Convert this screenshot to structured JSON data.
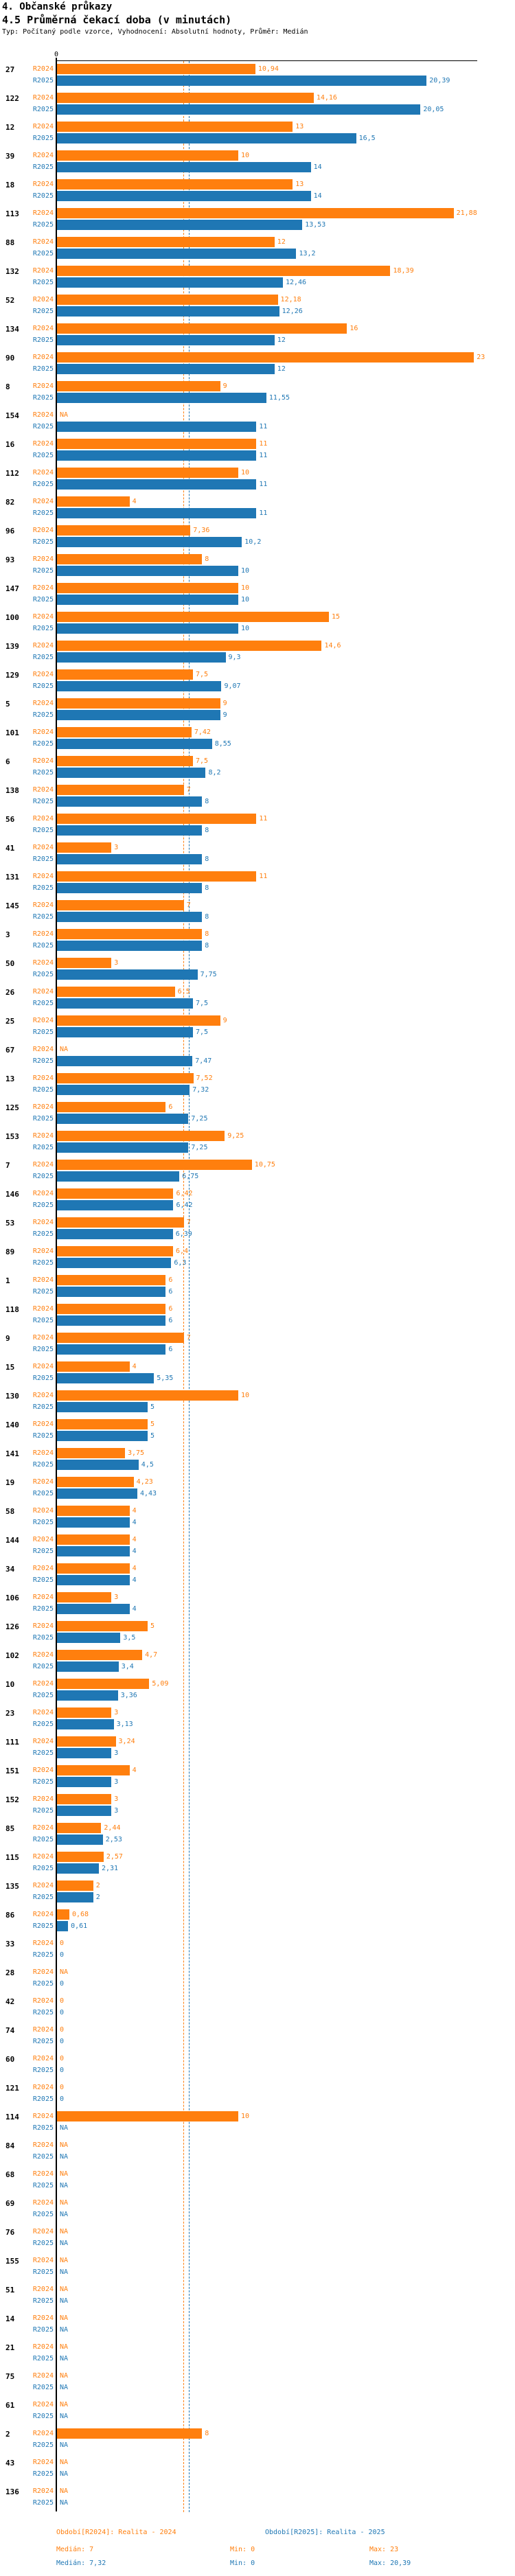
{
  "header": {
    "title": "4. Občanské průkazy",
    "subtitle": "4.5 Průměrná čekací doba (v minutách)",
    "meta": "Typ: Počítaný podle vzorce, Vyhodnocení: Absolutní hodnoty, Průměr: Medián"
  },
  "axis": {
    "zero_label": "0"
  },
  "colors": {
    "r2024": "#ff7f0e",
    "r2025": "#1f77b4",
    "axis": "#000000",
    "category": "#000000"
  },
  "footer": {
    "r2024_period": "Období[R2024]: Realita - 2024",
    "r2025_period": "Období[R2025]: Realita - 2025",
    "r2024_stats": {
      "median": "Medián: 7",
      "min": "Min: 0",
      "max": "Max: 23"
    },
    "r2025_stats": {
      "median": "Medián: 7,32",
      "min": "Min: 0",
      "max": "Max: 20,39"
    }
  },
  "chart_data": {
    "type": "bar",
    "orientation": "horizontal",
    "title": "4.5 Průměrná čekací doba (v minutách)",
    "xlim": [
      0,
      23.5
    ],
    "grid": false,
    "na_label": "NA",
    "legend_position": "bottom",
    "reference_lines": [
      {
        "name": "Medián R2024",
        "value": 7,
        "color": "#ff7f0e",
        "style": "dashed"
      },
      {
        "name": "Medián R2025",
        "value": 7.32,
        "color": "#1f77b4",
        "style": "dashed"
      }
    ],
    "categories": [
      "27",
      "122",
      "12",
      "39",
      "18",
      "113",
      "88",
      "132",
      "52",
      "134",
      "90",
      "8",
      "154",
      "16",
      "112",
      "82",
      "96",
      "93",
      "147",
      "100",
      "139",
      "129",
      "5",
      "101",
      "6",
      "138",
      "56",
      "41",
      "131",
      "145",
      "3",
      "50",
      "26",
      "25",
      "67",
      "13",
      "125",
      "153",
      "7",
      "146",
      "53",
      "89",
      "1",
      "118",
      "9",
      "15",
      "130",
      "140",
      "141",
      "19",
      "58",
      "144",
      "34",
      "106",
      "126",
      "102",
      "10",
      "23",
      "111",
      "151",
      "152",
      "85",
      "115",
      "135",
      "86",
      "33",
      "28",
      "42",
      "74",
      "60",
      "121",
      "114",
      "84",
      "68",
      "69",
      "76",
      "155",
      "51",
      "14",
      "21",
      "75",
      "61",
      "2",
      "43",
      "136"
    ],
    "series": [
      {
        "name": "R2024",
        "color": "#ff7f0e",
        "values": [
          10.94,
          14.16,
          13,
          10,
          13,
          21.88,
          12,
          18.39,
          12.18,
          16,
          23,
          9,
          null,
          11,
          10,
          4,
          7.36,
          8,
          10,
          15,
          14.6,
          7.5,
          9,
          7.42,
          7.5,
          7,
          11,
          3,
          11,
          7,
          8,
          3,
          6.5,
          9,
          null,
          7.52,
          6,
          9.25,
          10.75,
          6.42,
          7,
          6.4,
          6,
          6,
          7,
          4,
          10,
          5,
          3.75,
          4.23,
          4,
          4,
          4,
          3,
          5,
          4.7,
          5.09,
          3,
          3.24,
          4,
          3,
          2.44,
          2.57,
          2,
          0.68,
          0,
          null,
          0,
          0,
          0,
          0,
          10,
          null,
          null,
          null,
          null,
          null,
          null,
          null,
          null,
          null,
          null,
          8,
          null,
          null
        ],
        "labels": [
          "10,94",
          "14,16",
          "13",
          "10",
          "13",
          "21,88",
          "12",
          "18,39",
          "12,18",
          "16",
          "23",
          "9",
          "NA",
          "11",
          "10",
          "4",
          "7,36",
          "8",
          "10",
          "15",
          "14,6",
          "7,5",
          "9",
          "7,42",
          "7,5",
          "7",
          "11",
          "3",
          "11",
          "7",
          "8",
          "3",
          "6,5",
          "9",
          "NA",
          "7,52",
          "6",
          "9,25",
          "10,75",
          "6,42",
          "7",
          "6,4",
          "6",
          "6",
          "7",
          "4",
          "10",
          "5",
          "3,75",
          "4,23",
          "4",
          "4",
          "4",
          "3",
          "5",
          "4,7",
          "5,09",
          "3",
          "3,24",
          "4",
          "3",
          "2,44",
          "2,57",
          "2",
          "0,68",
          "0",
          "NA",
          "0",
          "0",
          "0",
          "0",
          "10",
          "NA",
          "NA",
          "NA",
          "NA",
          "NA",
          "NA",
          "NA",
          "NA",
          "NA",
          "NA",
          "8",
          "NA",
          "NA"
        ]
      },
      {
        "name": "R2025",
        "color": "#1f77b4",
        "values": [
          20.39,
          20.05,
          16.5,
          14,
          14,
          13.53,
          13.2,
          12.46,
          12.26,
          12,
          12,
          11.55,
          11,
          11,
          11,
          11,
          10.2,
          10,
          10,
          10,
          9.3,
          9.07,
          9,
          8.55,
          8.2,
          8,
          8,
          8,
          8,
          8,
          8,
          7.75,
          7.5,
          7.5,
          7.47,
          7.32,
          7.25,
          7.25,
          6.75,
          6.42,
          6.39,
          6.3,
          6,
          6,
          6,
          5.35,
          5,
          5,
          4.5,
          4.43,
          4,
          4,
          4,
          4,
          3.5,
          3.4,
          3.36,
          3.13,
          3,
          3,
          3,
          2.53,
          2.31,
          2,
          0.61,
          0,
          0,
          0,
          0,
          0,
          0,
          null,
          null,
          null,
          null,
          null,
          null,
          null,
          null,
          null,
          null,
          null,
          null,
          null,
          null
        ],
        "labels": [
          "20,39",
          "20,05",
          "16,5",
          "14",
          "14",
          "13,53",
          "13,2",
          "12,46",
          "12,26",
          "12",
          "12",
          "11,55",
          "11",
          "11",
          "11",
          "11",
          "10,2",
          "10",
          "10",
          "10",
          "9,3",
          "9,07",
          "9",
          "8,55",
          "8,2",
          "8",
          "8",
          "8",
          "8",
          "8",
          "8",
          "7,75",
          "7,5",
          "7,5",
          "7,47",
          "7,32",
          "7,25",
          "7,25",
          "6,75",
          "6,42",
          "6,39",
          "6,3",
          "6",
          "6",
          "6",
          "5,35",
          "5",
          "5",
          "4,5",
          "4,43",
          "4",
          "4",
          "4",
          "4",
          "3,5",
          "3,4",
          "3,36",
          "3,13",
          "3",
          "3",
          "3",
          "2,53",
          "2,31",
          "2",
          "0,61",
          "0",
          "0",
          "0",
          "0",
          "0",
          "0",
          "NA",
          "NA",
          "NA",
          "NA",
          "NA",
          "NA",
          "NA",
          "NA",
          "NA",
          "NA",
          "NA",
          "NA",
          "NA",
          "NA"
        ]
      }
    ]
  }
}
